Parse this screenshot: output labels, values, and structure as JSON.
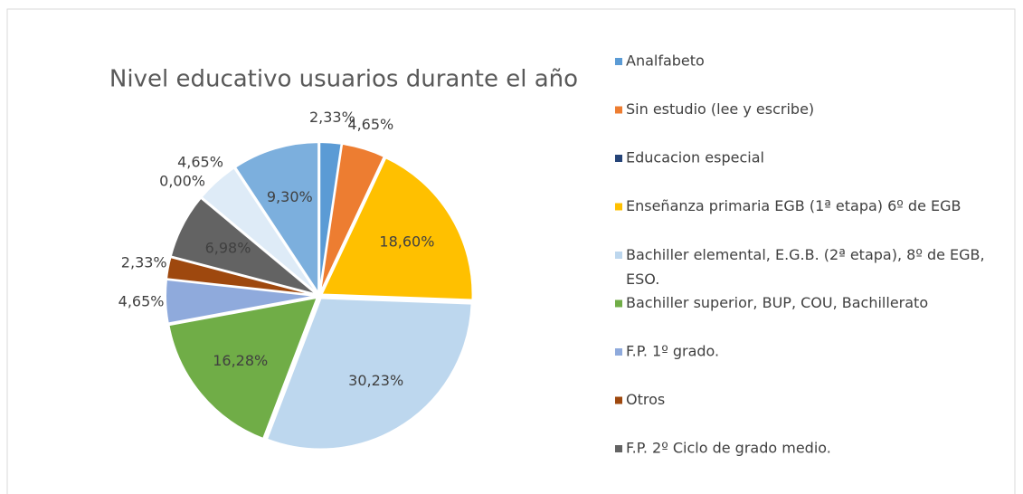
{
  "chart_data": {
    "type": "pie",
    "title": "Nivel educativo usuarios durante el año",
    "categories": [
      "Analfabeto",
      "Sin estudio (lee y escribe)",
      "Educacion especial",
      "Enseñanza primaria EGB (1ª etapa) 6º de EGB",
      "Bachiller elemental, E.G.B. (2ª etapa), 8º de EGB, ESO.",
      "Bachiller superior, BUP, COU, Bachillerato",
      "F.P. 1º grado.",
      "Otros",
      "F.P. 2º Ciclo de grado medio.",
      null,
      null,
      null
    ],
    "values": [
      2.33,
      4.65,
      0,
      18.6,
      30.23,
      16.28,
      4.65,
      2.33,
      6.98,
      0,
      4.65,
      9.3
    ],
    "value_labels": [
      "2,33%",
      "4,65%",
      null,
      "18,60%",
      "30,23%",
      "16,28%",
      "4,65%",
      "2,33%",
      "6,98%",
      "0,00%",
      "4,65%",
      "9,30%"
    ],
    "colors": [
      "#5b9bd5",
      "#ed7d31",
      "#264478",
      "#ffc000",
      "#bdd7ee",
      "#70ad47",
      "#8faadc",
      "#9e480e",
      "#636363",
      "#a5a5a5",
      "#deebf7",
      "#7cafdd"
    ],
    "legend": "right"
  }
}
